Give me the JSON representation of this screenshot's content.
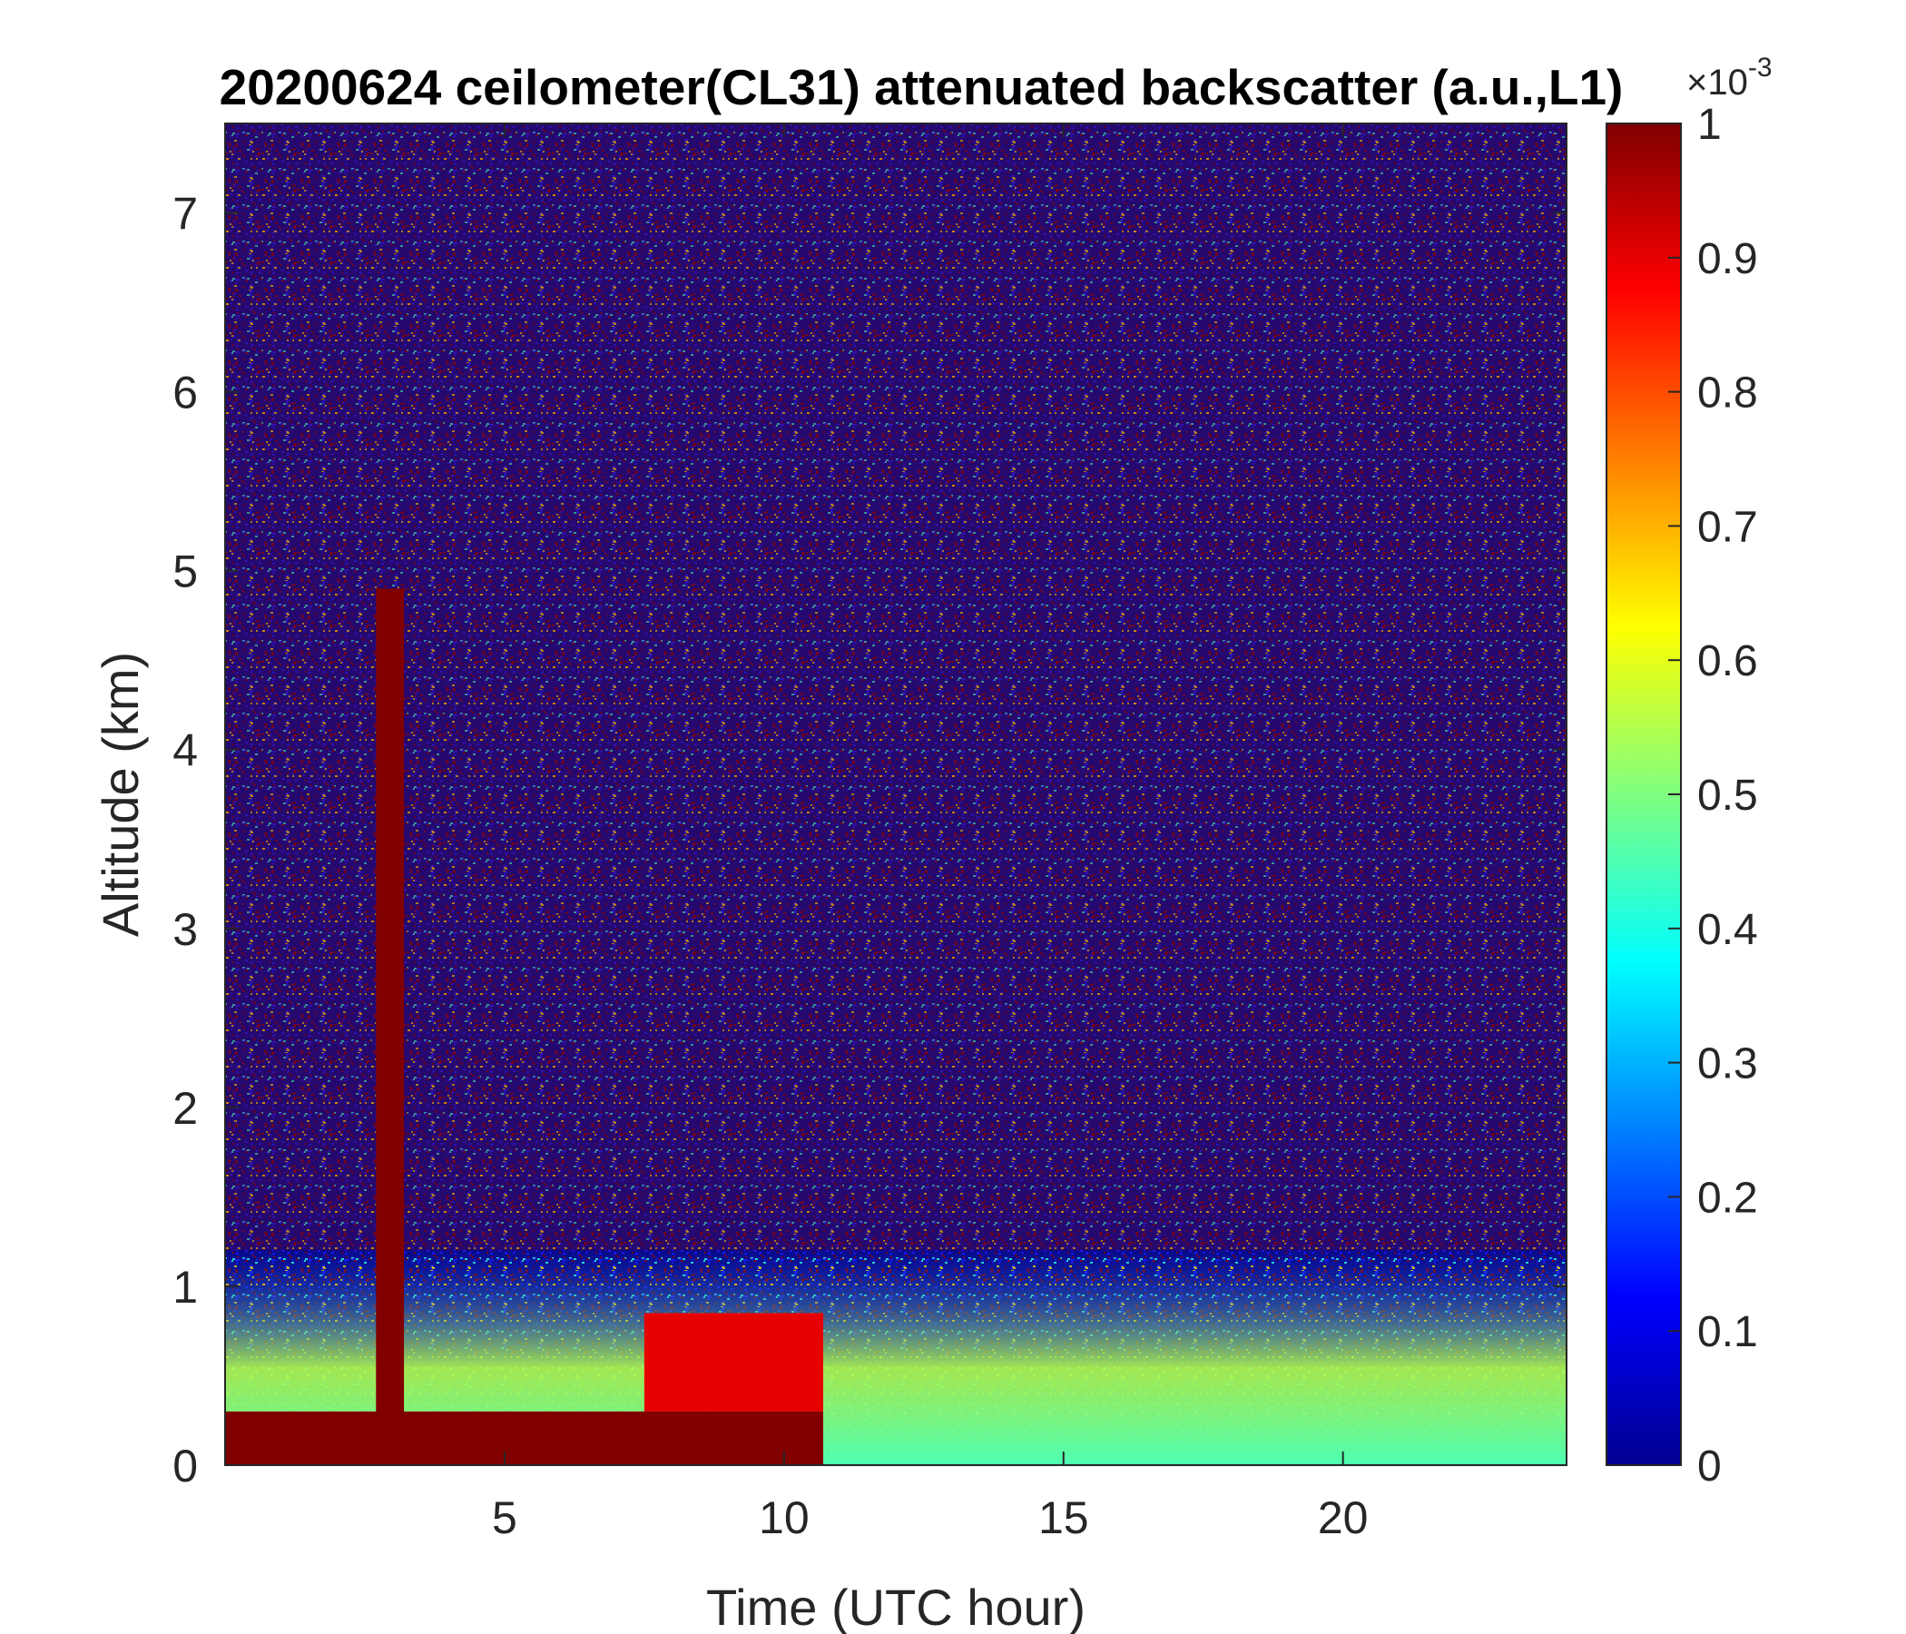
{
  "chart_data": {
    "type": "heatmap",
    "title": "20200624 ceilometer(CL31) attenuated backscatter (a.u.,L1)",
    "xlabel": "Time (UTC hour)",
    "ylabel": "Altitude (km)",
    "xlim": [
      0,
      24
    ],
    "ylim": [
      0,
      7.5
    ],
    "xticks": [
      5,
      10,
      15,
      20
    ],
    "yticks": [
      0,
      1,
      2,
      3,
      4,
      5,
      6,
      7
    ],
    "colorbar": {
      "range": [
        0,
        0.001
      ],
      "ticks": [
        "0",
        "0.1",
        "0.2",
        "0.3",
        "0.4",
        "0.5",
        "0.6",
        "0.7",
        "0.8",
        "0.9",
        "1"
      ],
      "tick_values": [
        0,
        0.1,
        0.2,
        0.3,
        0.4,
        0.5,
        0.6,
        0.7,
        0.8,
        0.9,
        1
      ],
      "exponent_base": "×10",
      "exponent_power": "-3",
      "colormap": "jet",
      "colors": [
        "#00008f",
        "#0000ff",
        "#00ffff",
        "#ffff00",
        "#ff0000",
        "#800000"
      ]
    },
    "features": [
      {
        "name": "near-surface saturated layer",
        "x": [
          0,
          10.7
        ],
        "y": [
          0,
          0.3
        ],
        "level": 1.0
      },
      {
        "name": "vertical plume",
        "x": [
          2.7,
          3.2
        ],
        "y": [
          0.2,
          4.9
        ],
        "level": 1.0
      },
      {
        "name": "aerosol layer",
        "x": [
          7.5,
          10.7
        ],
        "y": [
          0.3,
          0.85
        ],
        "level": 0.9
      },
      {
        "name": "boundary layer",
        "x": [
          0,
          24
        ],
        "y": [
          0,
          1.2
        ],
        "level": 0.45
      },
      {
        "name": "noise above boundary layer",
        "x": [
          0,
          24
        ],
        "y": [
          1.2,
          7.5
        ],
        "level": "mixed 0 / 1"
      }
    ]
  }
}
